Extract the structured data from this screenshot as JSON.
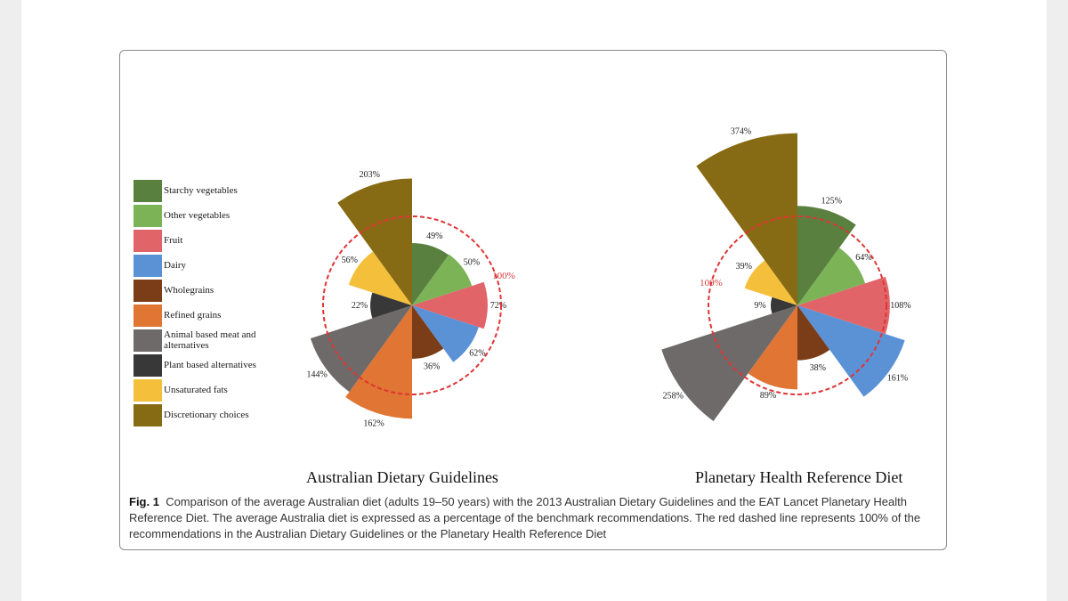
{
  "legend": [
    {
      "label": "Starchy vegetables",
      "color": "#5a8040"
    },
    {
      "label": "Other vegetables",
      "color": "#7bb356"
    },
    {
      "label": "Fruit",
      "color": "#e06468"
    },
    {
      "label": "Dairy",
      "color": "#5b92d6"
    },
    {
      "label": "Wholegrains",
      "color": "#7b3d18"
    },
    {
      "label": "Refined grains",
      "color": "#e07534"
    },
    {
      "label": "Animal based meat and alternatives",
      "color": "#6e6a6a"
    },
    {
      "label": "Plant based alternatives",
      "color": "#383838"
    },
    {
      "label": "Unsaturated fats",
      "color": "#f4bf3a"
    },
    {
      "label": "Discretionary choices",
      "color": "#876b14"
    }
  ],
  "chart_data": [
    {
      "type": "polar-area",
      "title": "Australian Dietary Guidelines",
      "reference_label": "100%",
      "categories": [
        "Starchy vegetables",
        "Other vegetables",
        "Fruit",
        "Dairy",
        "Wholegrains",
        "Refined grains",
        "Animal based meat and alternatives",
        "Plant based alternatives",
        "Unsaturated fats",
        "Discretionary choices"
      ],
      "values": [
        49,
        50,
        72,
        62,
        36,
        162,
        144,
        22,
        56,
        203
      ],
      "value_labels": [
        "49%",
        "50%",
        "72%",
        "62%",
        "36%",
        "162%",
        "144%",
        "22%",
        "56%",
        "203%"
      ]
    },
    {
      "type": "polar-area",
      "title": "Planetary Health Reference Diet",
      "reference_label": "100%",
      "categories": [
        "Starchy vegetables",
        "Other vegetables",
        "Fruit",
        "Dairy",
        "Wholegrains",
        "Refined grains",
        "Animal based meat and alternatives",
        "Plant based alternatives",
        "Unsaturated fats",
        "Discretionary choices"
      ],
      "values": [
        125,
        64,
        108,
        161,
        38,
        89,
        258,
        9,
        39,
        374
      ],
      "value_labels": [
        "125%",
        "64%",
        "108%",
        "161%",
        "38%",
        "89%",
        "258%",
        "9%",
        "39%",
        "374%"
      ]
    }
  ],
  "caption": {
    "label": "Fig. 1",
    "text": "Comparison of the average Australian diet (adults 19–50 years) with the 2013 Australian Dietary Guidelines and the EAT Lancet Planetary Health Reference Diet. The average Australia diet is expressed as a percentage of the benchmark recommendations. The red dashed line represents 100% of the recommendations in the Australian Dietary Guidelines or the Planetary Health Reference Diet"
  }
}
